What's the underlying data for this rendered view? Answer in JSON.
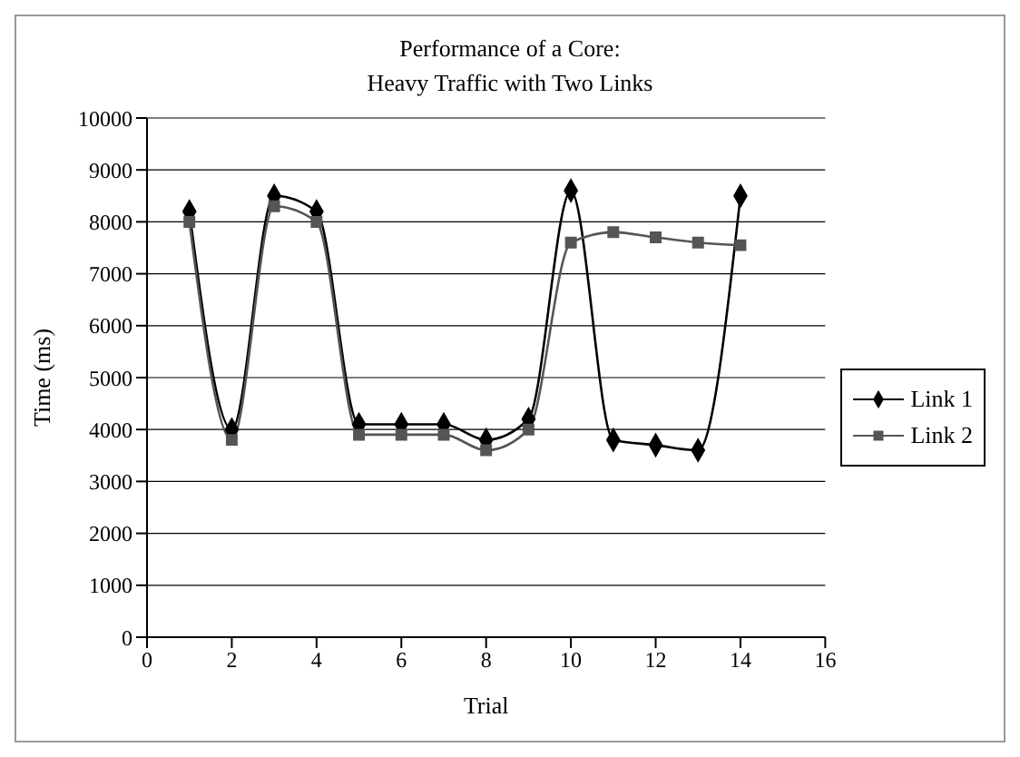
{
  "chart_data": {
    "type": "line",
    "title": "Performance of a Core:",
    "subtitle": "Heavy Traffic with Two Links",
    "xlabel": "Trial",
    "ylabel": "Time (ms)",
    "x": [
      1,
      2,
      3,
      4,
      5,
      6,
      7,
      8,
      9,
      10,
      11,
      12,
      13,
      14
    ],
    "series": [
      {
        "name": "Link 1",
        "color": "#000000",
        "marker": "diamond",
        "values": [
          8200,
          4000,
          8500,
          8200,
          4100,
          4100,
          4100,
          3800,
          4200,
          8600,
          3800,
          3700,
          3600,
          8500
        ]
      },
      {
        "name": "Link 2",
        "color": "#555555",
        "marker": "square",
        "values": [
          8000,
          3800,
          8300,
          8000,
          3900,
          3900,
          3900,
          3600,
          4000,
          7600,
          7800,
          7700,
          7600,
          7550
        ]
      }
    ],
    "xlim": [
      0,
      16
    ],
    "xticks": [
      0,
      2,
      4,
      6,
      8,
      10,
      12,
      14,
      16
    ],
    "ylim": [
      0,
      10000
    ],
    "yticks": [
      0,
      1000,
      2000,
      3000,
      4000,
      5000,
      6000,
      7000,
      8000,
      9000,
      10000
    ],
    "grid": "y",
    "legend": "right",
    "line_style": "solid"
  }
}
